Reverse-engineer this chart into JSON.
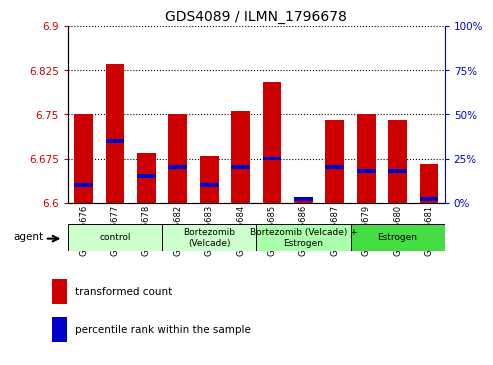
{
  "title": "GDS4089 / ILMN_1796678",
  "samples": [
    "GSM766676",
    "GSM766677",
    "GSM766678",
    "GSM766682",
    "GSM766683",
    "GSM766684",
    "GSM766685",
    "GSM766686",
    "GSM766687",
    "GSM766679",
    "GSM766680",
    "GSM766681"
  ],
  "red_values": [
    6.75,
    6.835,
    6.685,
    6.75,
    6.68,
    6.755,
    6.805,
    6.605,
    6.74,
    6.75,
    6.74,
    6.665
  ],
  "blue_pct": [
    10,
    35,
    15,
    20,
    10,
    20,
    25,
    2,
    20,
    18,
    18,
    2
  ],
  "y_min": 6.6,
  "y_max": 6.9,
  "y_ticks": [
    6.6,
    6.675,
    6.75,
    6.825,
    6.9
  ],
  "right_ticks": [
    0,
    25,
    50,
    75,
    100
  ],
  "right_tick_labels": [
    "0%",
    "25%",
    "50%",
    "75%",
    "100%"
  ],
  "bar_color": "#cc0000",
  "blue_color": "#0000cc",
  "group_labels": [
    "control",
    "Bortezomib\n(Velcade)",
    "Bortezomib (Velcade) +\nEstrogen",
    "Estrogen"
  ],
  "group_starts": [
    0,
    3,
    6,
    9
  ],
  "group_ends": [
    3,
    6,
    9,
    12
  ],
  "group_colors": [
    "#ccffcc",
    "#ccffcc",
    "#aaffaa",
    "#44dd44"
  ],
  "agent_label": "agent",
  "legend1": "transformed count",
  "legend2": "percentile rank within the sample",
  "title_fontsize": 10,
  "axis_label_color_left": "#cc0000",
  "axis_label_color_right": "#0000cc",
  "bar_width": 0.6
}
